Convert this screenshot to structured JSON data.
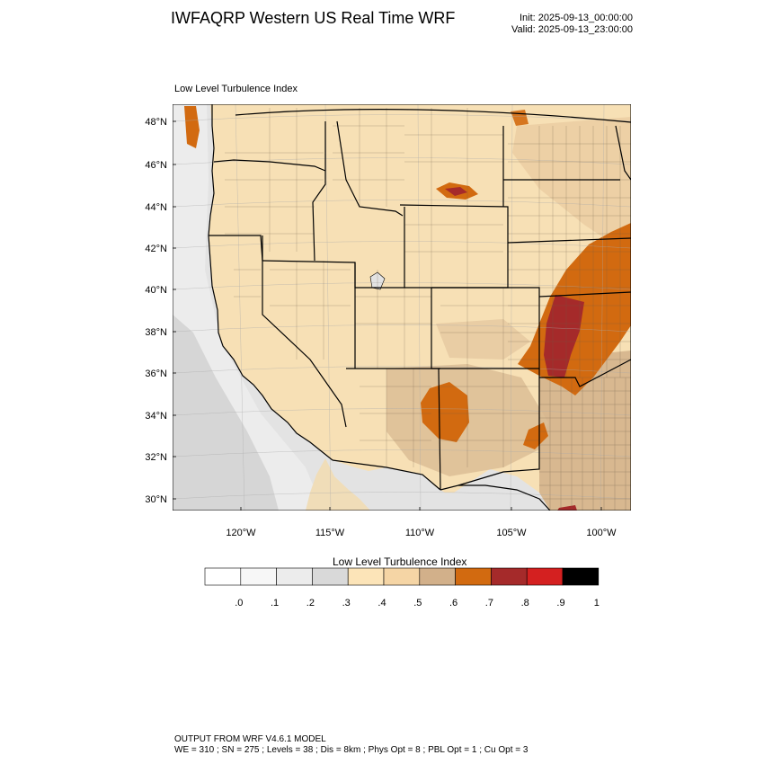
{
  "header": {
    "title": "IWFAQRP Western US Real Time WRF",
    "init": "Init: 2025-09-13_00:00:00",
    "valid": "Valid: 2025-09-13_23:00:00"
  },
  "map": {
    "subtitle": "Low Level Turbulence Index",
    "lat_ticks": [
      "48°N",
      "46°N",
      "44°N",
      "42°N",
      "40°N",
      "38°N",
      "36°N",
      "34°N",
      "32°N",
      "30°N"
    ],
    "lon_ticks": [
      "120°W",
      "115°W",
      "110°W",
      "105°W",
      "100°W"
    ],
    "ocean_color": "#e3e3e3",
    "land_color": "#f7e0b5",
    "border_color": "#000000"
  },
  "legend": {
    "title": "Low Level Turbulence Index",
    "labels": [
      ".0",
      ".1",
      ".2",
      ".3",
      ".4",
      ".5",
      ".6",
      ".7",
      ".8",
      ".9",
      "1"
    ],
    "colors": [
      "#ffffff",
      "#f7f7f7",
      "#ececec",
      "#d9d9d9",
      "#fce4b8",
      "#f5d5a5",
      "#d2b08a",
      "#d26a10",
      "#a52a2a",
      "#d42020",
      "#000000"
    ]
  },
  "footer": {
    "line1": "OUTPUT FROM WRF V4.6.1 MODEL",
    "line2": "WE = 310 ; SN = 275 ; Levels = 38 ; Dis = 8km ; Phys Opt = 8 ; PBL Opt = 1 ; Cu Opt = 3"
  }
}
